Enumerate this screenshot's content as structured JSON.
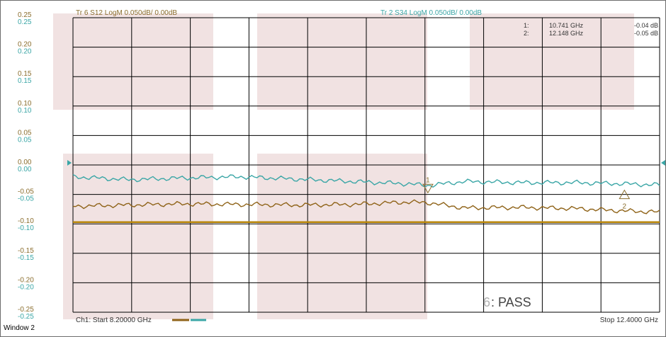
{
  "window": {
    "label": "Window 2"
  },
  "colors": {
    "shade": "#f1e2e2",
    "grid": "#000000",
    "teal": "#3aa6a6",
    "brown": "#8f6318",
    "limit": "#b8860b",
    "axis_dark": "#8b6e2e",
    "text": "#333333"
  },
  "trace_titles": {
    "tr6": "Tr 6  S12 LogM 0.050dB/  0.00dB",
    "tr2": "Tr 2  S34 LogM 0.050dB/  0.00dB"
  },
  "markers": [
    {
      "index": "1:",
      "freq": "10.741 GHz",
      "value": "-0.04 dB",
      "label": "1"
    },
    {
      "index": "2:",
      "freq": "12.148 GHz",
      "value": "-0.05 dB",
      "label": "2"
    }
  ],
  "status": {
    "pass_num": "6",
    "pass_text": ": PASS"
  },
  "footer": {
    "start": "Ch1:  Start  8.20000 GHz",
    "stop": "Stop  12.4000 GHz"
  },
  "chart_data": {
    "type": "line",
    "title": "",
    "xlabel": "",
    "ylabel": "",
    "xlim": [
      8.2,
      12.4
    ],
    "ylim": [
      -0.25,
      0.25
    ],
    "y_ticks": [
      "0.25",
      "0.20",
      "0.15",
      "0.10",
      "0.05",
      "0.00",
      "-0.05",
      "-0.10",
      "-0.15",
      "-0.20",
      "-0.25"
    ],
    "y_ticks_secondary": [
      "0.25",
      "0.20",
      "0.15",
      "0.10",
      "0.05",
      "0.00",
      "-0.05",
      "-0.10",
      "-0.15",
      "-0.20",
      "-0.25"
    ],
    "grid": true,
    "series": [
      {
        "name": "Tr 2  S34 LogM 0.050dB/  0.00dB",
        "color": "#3aa6a6",
        "x": [
          8.2,
          8.6,
          9.0,
          9.4,
          9.8,
          10.2,
          10.6,
          10.74,
          11.0,
          11.4,
          11.8,
          12.148,
          12.4
        ],
        "y": [
          -0.02,
          -0.025,
          -0.022,
          -0.02,
          -0.024,
          -0.028,
          -0.032,
          -0.035,
          -0.028,
          -0.03,
          -0.03,
          -0.032,
          -0.034
        ]
      },
      {
        "name": "Tr 6  S12 LogM 0.050dB/  0.00dB",
        "color": "#8f6318",
        "x": [
          8.2,
          8.6,
          9.0,
          9.4,
          9.8,
          10.2,
          10.6,
          10.74,
          11.0,
          11.4,
          11.8,
          12.148,
          12.4
        ],
        "y": [
          -0.07,
          -0.068,
          -0.066,
          -0.067,
          -0.068,
          -0.067,
          -0.063,
          -0.064,
          -0.073,
          -0.072,
          -0.074,
          -0.078,
          -0.08
        ]
      },
      {
        "name": "",
        "color": "#b8860b",
        "x": [
          8.2,
          12.4
        ],
        "y": [
          -0.097,
          -0.097
        ]
      }
    ],
    "marker_points": [
      {
        "label": "1",
        "x": 10.741,
        "y": -0.04,
        "style": "down"
      },
      {
        "label": "2",
        "x": 12.148,
        "y": -0.05,
        "style": "up"
      }
    ]
  }
}
